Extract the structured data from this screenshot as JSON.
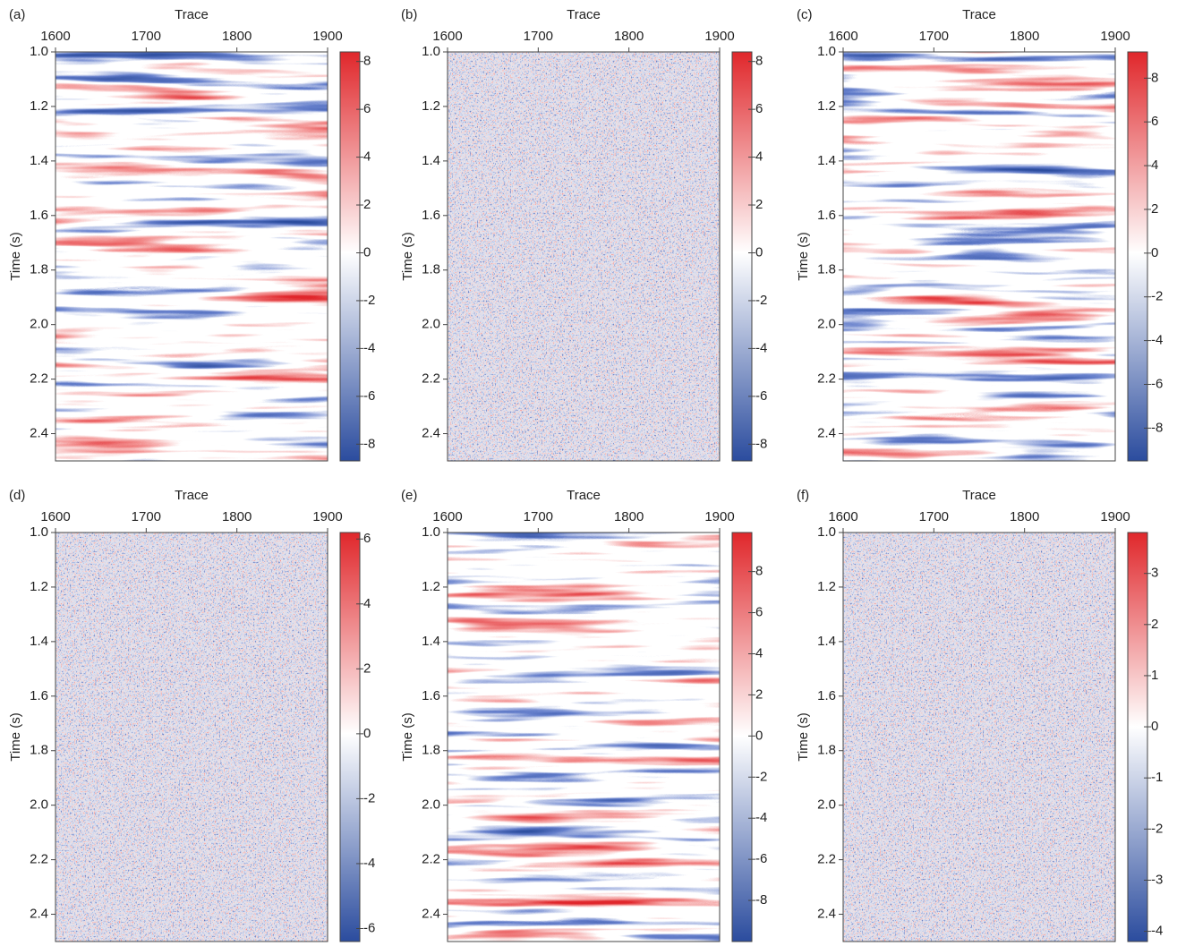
{
  "chart_data": [
    {
      "type": "heatmap",
      "label": "(a)",
      "xlabel": "Trace",
      "ylabel": "Time (s)",
      "xlim": [
        1600,
        1900
      ],
      "xticks": [
        1600,
        1700,
        1800,
        1900
      ],
      "ylim": [
        1.0,
        2.5
      ],
      "y_inverted": true,
      "yticks": [
        {
          "value": 1,
          "label": "1.0"
        },
        1.2,
        1.4,
        1.6,
        1.8,
        {
          "value": 2,
          "label": "2.0"
        },
        2.2,
        2.4
      ],
      "colorbar": {
        "clim": [
          -8.7,
          8.4
        ],
        "ticks": [
          -8,
          -6,
          -4,
          -2,
          0,
          2,
          4,
          6,
          8
        ]
      },
      "colormap": [
        "#2b4c9e",
        "#ffffff",
        "#e0272b"
      ]
    },
    {
      "type": "heatmap",
      "label": "(b)",
      "xlabel": "Trace",
      "ylabel": "Time (s)",
      "xlim": [
        1600,
        1900
      ],
      "xticks": [
        1600,
        1700,
        1800,
        1900
      ],
      "ylim": [
        1.0,
        2.5
      ],
      "y_inverted": true,
      "yticks": [
        {
          "value": 1,
          "label": "1.0"
        },
        1.2,
        1.4,
        1.6,
        1.8,
        {
          "value": 2,
          "label": "2.0"
        },
        2.2,
        2.4
      ],
      "colorbar": {
        "clim": [
          -8.7,
          8.4
        ],
        "ticks": [
          -8,
          -6,
          -4,
          -2,
          0,
          2,
          4,
          6,
          8
        ]
      },
      "colormap": [
        "#2b4c9e",
        "#ffffff",
        "#e0272b"
      ]
    },
    {
      "type": "heatmap",
      "label": "(c)",
      "xlabel": "Trace",
      "ylabel": "Time (s)",
      "xlim": [
        1600,
        1900
      ],
      "xticks": [
        1600,
        1700,
        1800,
        1900
      ],
      "ylim": [
        1.0,
        2.5
      ],
      "y_inverted": true,
      "yticks": [
        {
          "value": 1,
          "label": "1.0"
        },
        1.2,
        1.4,
        1.6,
        1.8,
        {
          "value": 2,
          "label": "2.0"
        },
        2.2,
        2.4
      ],
      "colorbar": {
        "clim": [
          -9.5,
          9.2
        ],
        "ticks": [
          -8,
          -6,
          -4,
          -2,
          0,
          2,
          4,
          6,
          8
        ]
      },
      "colormap": [
        "#2b4c9e",
        "#ffffff",
        "#e0272b"
      ]
    },
    {
      "type": "heatmap",
      "label": "(d)",
      "xlabel": "Trace",
      "ylabel": "Time (s)",
      "xlim": [
        1600,
        1900
      ],
      "xticks": [
        1600,
        1700,
        1800,
        1900
      ],
      "ylim": [
        1.0,
        2.5
      ],
      "y_inverted": true,
      "yticks": [
        {
          "value": 1,
          "label": "1.0"
        },
        1.2,
        1.4,
        1.6,
        1.8,
        {
          "value": 2,
          "label": "2.0"
        },
        2.2,
        2.4
      ],
      "colorbar": {
        "clim": [
          -6.4,
          6.2
        ],
        "ticks": [
          -6,
          -4,
          -2,
          0,
          2,
          4,
          6
        ]
      },
      "colormap": [
        "#2b4c9e",
        "#ffffff",
        "#e0272b"
      ]
    },
    {
      "type": "heatmap",
      "label": "(e)",
      "xlabel": "Trace",
      "ylabel": "Time (s)",
      "xlim": [
        1600,
        1900
      ],
      "xticks": [
        1600,
        1700,
        1800,
        1900
      ],
      "ylim": [
        1.0,
        2.5
      ],
      "y_inverted": true,
      "yticks": [
        {
          "value": 1,
          "label": "1.0"
        },
        1.2,
        1.4,
        1.6,
        1.8,
        {
          "value": 2,
          "label": "2.0"
        },
        2.2,
        2.4
      ],
      "colorbar": {
        "clim": [
          -10,
          9.9
        ],
        "ticks": [
          -8,
          -6,
          -4,
          -2,
          0,
          2,
          4,
          6,
          8
        ]
      },
      "colormap": [
        "#2b4c9e",
        "#ffffff",
        "#e0272b"
      ]
    },
    {
      "type": "heatmap",
      "label": "(f)",
      "xlabel": "Trace",
      "ylabel": "Time (s)",
      "xlim": [
        1600,
        1900
      ],
      "xticks": [
        1600,
        1700,
        1800,
        1900
      ],
      "ylim": [
        1.0,
        2.5
      ],
      "y_inverted": true,
      "yticks": [
        {
          "value": 1,
          "label": "1.0"
        },
        1.2,
        1.4,
        1.6,
        1.8,
        {
          "value": 2,
          "label": "2.0"
        },
        2.2,
        2.4
      ],
      "colorbar": {
        "clim": [
          -4.2,
          3.8
        ],
        "ticks": [
          -4,
          -3,
          -2,
          -1,
          0,
          1,
          2,
          3
        ]
      },
      "colormap": [
        "#2b4c9e",
        "#ffffff",
        "#e0272b"
      ]
    }
  ]
}
